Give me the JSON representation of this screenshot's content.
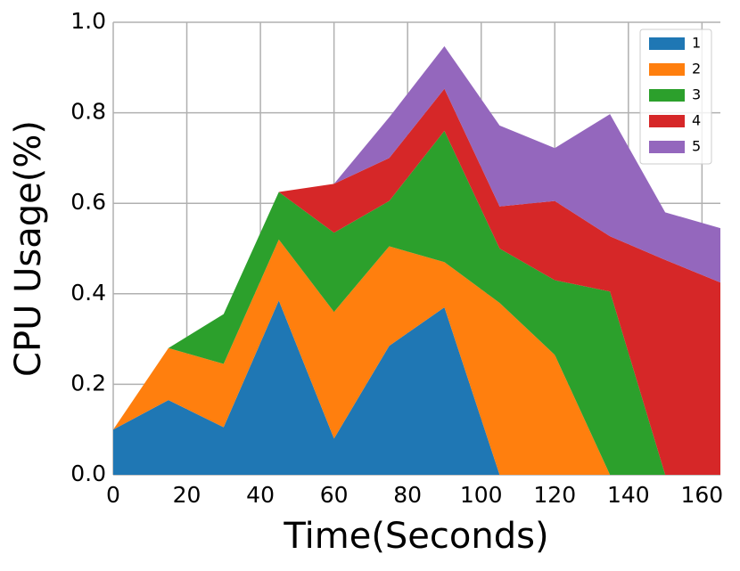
{
  "chart_data": {
    "type": "stacked_area",
    "xlabel": "Time(Seconds)",
    "ylabel": "CPU Usage(%)",
    "x": [
      0,
      15,
      30,
      45,
      60,
      75,
      90,
      105,
      120,
      135,
      150,
      165
    ],
    "series": [
      {
        "name": "1",
        "color": "#1f77b4",
        "values": [
          0.1,
          0.165,
          0.105,
          0.385,
          0.08,
          0.285,
          0.37,
          0,
          0,
          0,
          0,
          0
        ]
      },
      {
        "name": "2",
        "color": "#ff7f0e",
        "values": [
          0,
          0.115,
          0.14,
          0.135,
          0.28,
          0.22,
          0.1,
          0.38,
          0.265,
          0,
          0,
          0
        ]
      },
      {
        "name": "3",
        "color": "#2ca02c",
        "values": [
          0,
          0,
          0.11,
          0.105,
          0.175,
          0.1,
          0.29,
          0.12,
          0.165,
          0.405,
          0,
          0
        ]
      },
      {
        "name": "4",
        "color": "#d62728",
        "values": [
          0,
          0,
          0,
          0,
          0.108,
          0.095,
          0.093,
          0.093,
          0.175,
          0.122,
          0.475,
          0.425
        ]
      },
      {
        "name": "5",
        "color": "#9467bd",
        "values": [
          0,
          0,
          0,
          0,
          0,
          0.09,
          0.094,
          0.179,
          0.117,
          0.27,
          0.105,
          0.12
        ]
      }
    ],
    "xlim": [
      0,
      165
    ],
    "xticks": [
      0,
      20,
      40,
      60,
      80,
      100,
      120,
      140,
      160
    ],
    "ylim": [
      0,
      1
    ],
    "yticks": [
      {
        "value": 0,
        "label": "0.0"
      },
      0.2,
      0.4,
      0.6,
      0.8,
      {
        "value": 1,
        "label": "1.0"
      }
    ],
    "grid": true,
    "legend": "upper right"
  }
}
